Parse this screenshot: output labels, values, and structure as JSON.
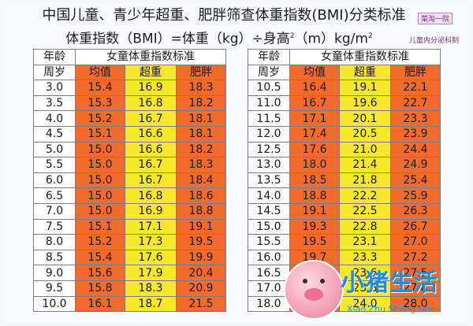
{
  "header": {
    "title": "中国儿童、青少年超重、肥胖筛查体重指数(BMI)分类标准",
    "formula_main": "体重指数（BMI）=体重（kg）÷身高",
    "formula_sup": "2",
    "formula_unit": "（m）kg/m",
    "formula_unit_sup": "2",
    "stamp_1": "菜淘一院",
    "stamp_2": "儿童内分泌科制"
  },
  "table_headers": {
    "age_top": "年龄",
    "age_bottom": "周岁",
    "group": "女童体重指数标准",
    "avg": "均值",
    "over": "超重",
    "obese": "肥胖"
  },
  "left_rows": [
    {
      "age": "3.0",
      "avg": "15.4",
      "over": "16.9",
      "obese": "18.3"
    },
    {
      "age": "3.5",
      "avg": "15.3",
      "over": "16.8",
      "obese": "18.2"
    },
    {
      "age": "4.0",
      "avg": "15.2",
      "over": "16.7",
      "obese": "18.1"
    },
    {
      "age": "4.5",
      "avg": "15.1",
      "over": "16.6",
      "obese": "18.1"
    },
    {
      "age": "5.0",
      "avg": "15.0",
      "over": "16.6",
      "obese": "18.2"
    },
    {
      "age": "5.5",
      "avg": "15.0",
      "over": "16.7",
      "obese": "18.3"
    },
    {
      "age": "6.0",
      "avg": "15.0",
      "over": "16.7",
      "obese": "18.4"
    },
    {
      "age": "6.5",
      "avg": "15.0",
      "over": "16.8",
      "obese": "18.6"
    },
    {
      "age": "7.0",
      "avg": "15.0",
      "over": "16.9",
      "obese": "18.8"
    },
    {
      "age": "7.5",
      "avg": "15.1",
      "over": "17.1",
      "obese": "19.1"
    },
    {
      "age": "8.0",
      "avg": "15.2",
      "over": "17.3",
      "obese": "19.5"
    },
    {
      "age": "8.5",
      "avg": "15.4",
      "over": "17.6",
      "obese": "19.9"
    },
    {
      "age": "9.0",
      "avg": "15.6",
      "over": "17.9",
      "obese": "20.4"
    },
    {
      "age": "9.5",
      "avg": "15.8",
      "over": "18.3",
      "obese": "20.9"
    },
    {
      "age": "10.0",
      "avg": "16.1",
      "over": "18.7",
      "obese": "21.5"
    }
  ],
  "right_rows": [
    {
      "age": "10.5",
      "avg": "16.4",
      "over": "19.1",
      "obese": "22.1"
    },
    {
      "age": "11.0",
      "avg": "16.7",
      "over": "19.6",
      "obese": "22.7"
    },
    {
      "age": "11.5",
      "avg": "17.1",
      "over": "20.1",
      "obese": "23.3"
    },
    {
      "age": "12.0",
      "avg": "17.4",
      "over": "20.5",
      "obese": "23.9"
    },
    {
      "age": "12.5",
      "avg": "17.6",
      "over": "21.0",
      "obese": "24.4"
    },
    {
      "age": "13.0",
      "avg": "18.0",
      "over": "21.4",
      "obese": "24.9"
    },
    {
      "age": "13.5",
      "avg": "18.5",
      "over": "21.8",
      "obese": "25.4"
    },
    {
      "age": "14.0",
      "avg": "18.8",
      "over": "22.2",
      "obese": "25.9"
    },
    {
      "age": "14.5",
      "avg": "19.1",
      "over": "22.5",
      "obese": "26.3"
    },
    {
      "age": "15.0",
      "avg": "19.3",
      "over": "22.8",
      "obese": "26.7"
    },
    {
      "age": "15.5",
      "avg": "19.5",
      "over": "23.1",
      "obese": "27.0"
    },
    {
      "age": "16.0",
      "avg": "19.7",
      "over": "23.3",
      "obese": "27.2"
    },
    {
      "age": "16.5",
      "avg": "19.9",
      "over": "23.6",
      "obese": "27.5"
    },
    {
      "age": "17.0",
      "avg": "20.0",
      "over": "23.8",
      "obese": "27.8"
    },
    {
      "age": "18.0",
      "avg": "20.3",
      "over": "24.0",
      "obese": "28.0"
    }
  ],
  "watermark": {
    "text": "小猪生活",
    "sub": "Xiao Zhu Sheng Huo"
  },
  "colors": {
    "orange": "#f26a2e",
    "yellow": "#f5e82a",
    "watermark_blue": "#1e8fe0"
  }
}
